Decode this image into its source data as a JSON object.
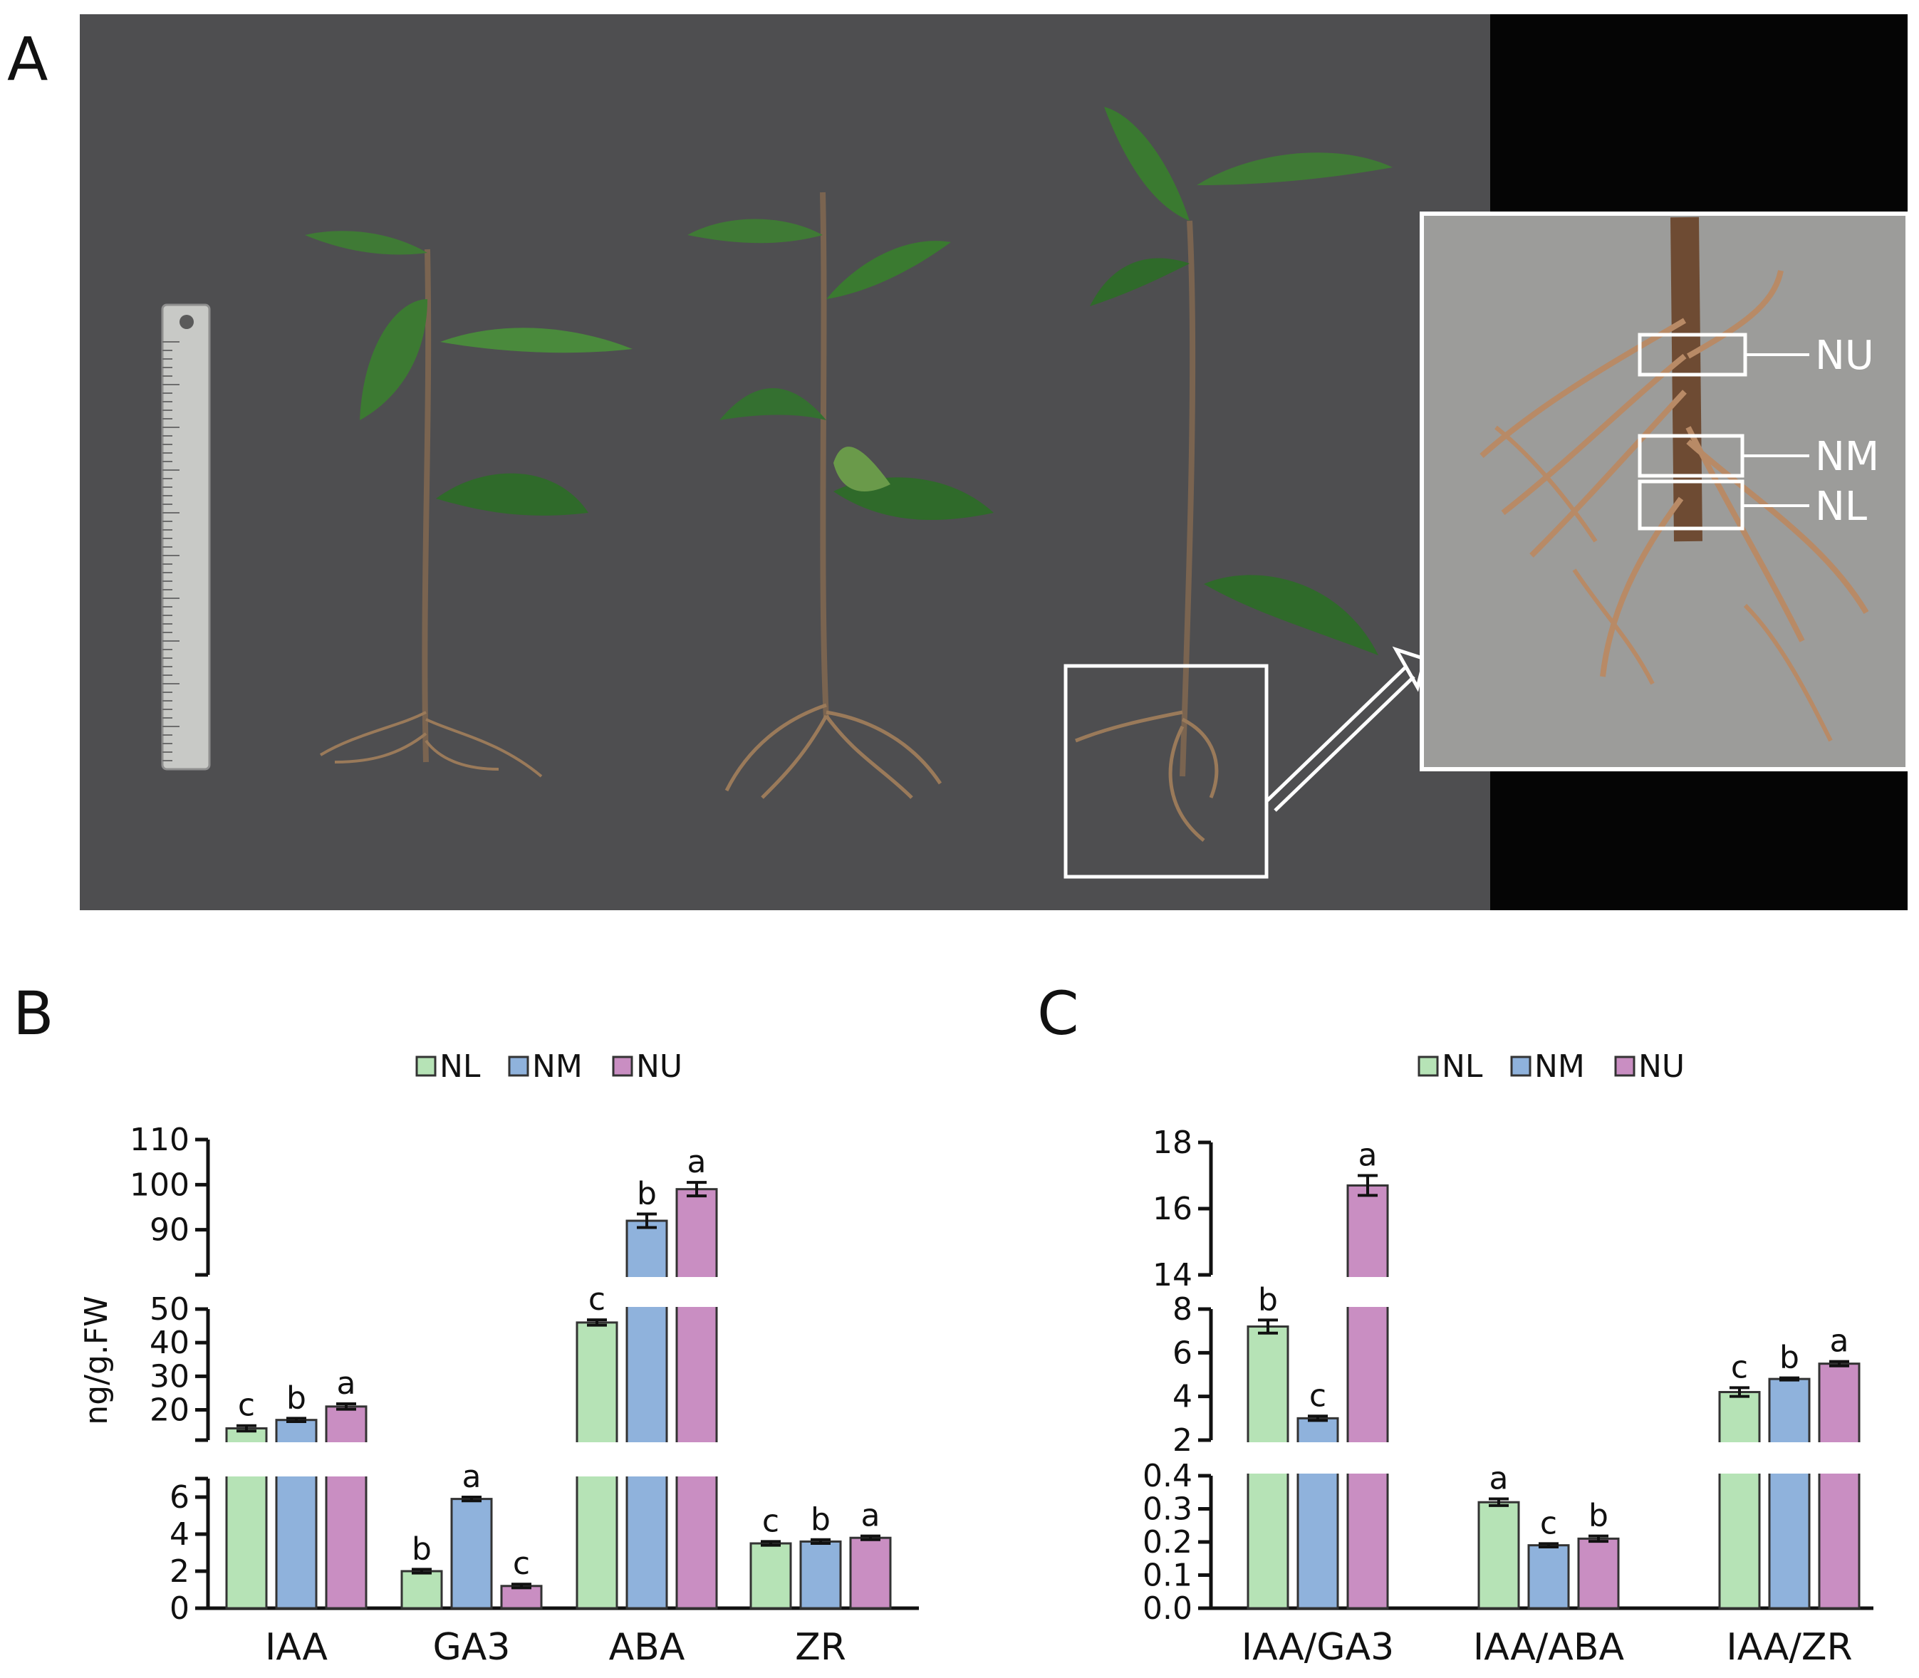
{
  "panels": {
    "A": "A",
    "B": "B",
    "C": "C"
  },
  "photo": {
    "inset_labels": [
      "NU",
      "NM",
      "NL"
    ]
  },
  "colors": {
    "NL": "#b6e3b6",
    "NM": "#8fb2dc",
    "NU": "#c98ec2",
    "background_photo": "#4f4f51",
    "black_band": "#050505"
  },
  "chart_data": [
    {
      "type": "bar",
      "panel": "B",
      "categories": [
        "IAA",
        "GA3",
        "ABA",
        "ZR"
      ],
      "legend": [
        "NL",
        "NM",
        "NU"
      ],
      "ylabel": "ng/g.FW",
      "broken_axis": true,
      "segments": [
        {
          "range": [
            0,
            7
          ],
          "ticks": [
            0,
            2,
            4,
            6
          ]
        },
        {
          "range": [
            11,
            50
          ],
          "ticks": [
            20,
            30,
            40,
            50
          ]
        },
        {
          "range": [
            80,
            110
          ],
          "ticks": [
            90,
            100,
            110
          ]
        }
      ],
      "series": [
        {
          "name": "NL",
          "values": [
            14.5,
            2.0,
            46.0,
            3.5
          ],
          "errors": [
            0.8,
            0.1,
            0.8,
            0.1
          ],
          "letters": [
            "c",
            "b",
            "c",
            "c"
          ]
        },
        {
          "name": "NM",
          "values": [
            17.0,
            5.9,
            92.0,
            3.6
          ],
          "errors": [
            0.5,
            0.1,
            1.5,
            0.1
          ],
          "letters": [
            "b",
            "a",
            "b",
            "b"
          ]
        },
        {
          "name": "NU",
          "values": [
            21.0,
            1.2,
            99.0,
            3.8
          ],
          "errors": [
            0.8,
            0.1,
            1.5,
            0.1
          ],
          "letters": [
            "a",
            "c",
            "a",
            "a"
          ]
        }
      ]
    },
    {
      "type": "bar",
      "panel": "C",
      "categories": [
        "IAA/GA3",
        "IAA/ABA",
        "IAA/ZR"
      ],
      "legend": [
        "NL",
        "NM",
        "NU"
      ],
      "ylabel": "",
      "broken_axis": true,
      "segments": [
        {
          "range": [
            0,
            0.4
          ],
          "ticks": [
            "0.0",
            "0.1",
            "0.2",
            "0.3",
            "0.4"
          ]
        },
        {
          "range": [
            2,
            8
          ],
          "ticks": [
            2,
            4,
            6,
            8
          ]
        },
        {
          "range": [
            14,
            18
          ],
          "ticks": [
            14,
            16,
            18
          ]
        }
      ],
      "series": [
        {
          "name": "NL",
          "values": [
            7.2,
            0.32,
            4.2
          ],
          "errors": [
            0.3,
            0.01,
            0.2
          ],
          "letters": [
            "b",
            "a",
            "c"
          ]
        },
        {
          "name": "NM",
          "values": [
            3.0,
            0.19,
            4.8
          ],
          "errors": [
            0.1,
            0.005,
            0.05
          ],
          "letters": [
            "c",
            "c",
            "b"
          ]
        },
        {
          "name": "NU",
          "values": [
            16.7,
            0.21,
            5.5
          ],
          "errors": [
            0.3,
            0.008,
            0.1
          ],
          "letters": [
            "a",
            "b",
            "a"
          ]
        }
      ]
    }
  ]
}
